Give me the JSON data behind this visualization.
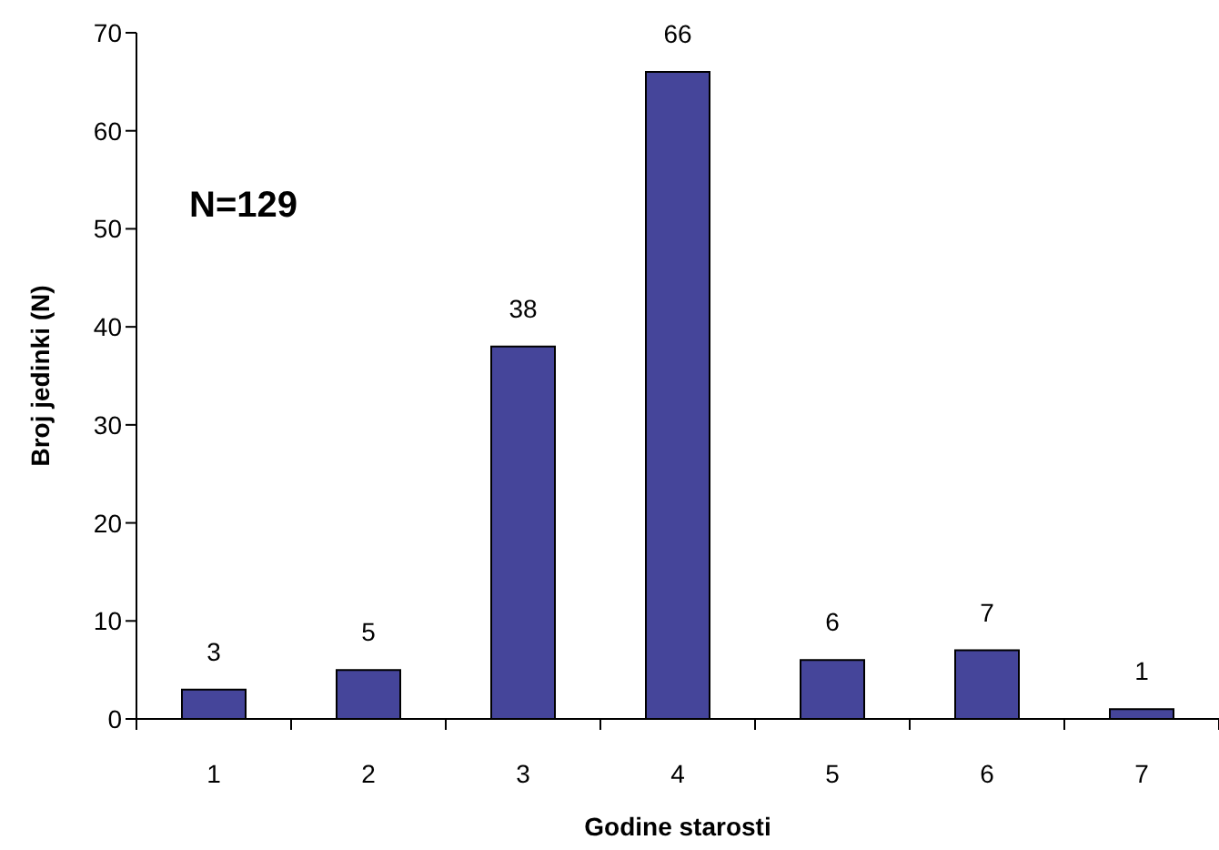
{
  "chart_data": {
    "type": "bar",
    "xlabel": "Godine starosti",
    "ylabel": "Broj jedinki (N)",
    "categories": [
      "1",
      "2",
      "3",
      "4",
      "5",
      "6",
      "7"
    ],
    "values": [
      3,
      5,
      38,
      66,
      6,
      7,
      1
    ],
    "color": "#45459a",
    "ylim": [
      0,
      70
    ],
    "yticks": [
      0,
      10,
      20,
      30,
      40,
      50,
      60,
      70
    ],
    "data_labels": true,
    "annotations": [
      "N=129"
    ]
  }
}
